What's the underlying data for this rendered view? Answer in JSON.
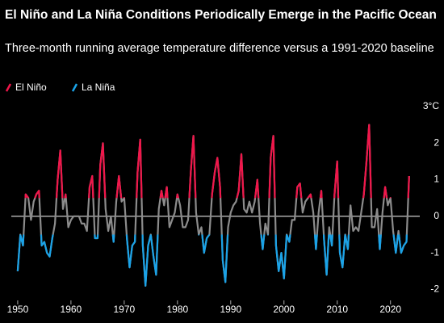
{
  "chart_data": {
    "type": "line",
    "title": "El Niño and La Niña Conditions Periodically Emerge in the Pacific Ocean",
    "subtitle": "Three-month running average temperature difference versus a 1991-2020 baseline",
    "color": "#8c8c8c",
    "series": [
      {
        "name": "El Niño",
        "color": "#f0164a",
        "min": 0.5
      },
      {
        "name": "La Niña",
        "color": "#1aa3e8",
        "max": -0.5
      }
    ],
    "x": [
      1950,
      1950.5,
      1951,
      1951.5,
      1952,
      1952.5,
      1953,
      1953.5,
      1954,
      1954.5,
      1955,
      1955.5,
      1956,
      1956.5,
      1957,
      1957.5,
      1958,
      1958.5,
      1959,
      1959.5,
      1960,
      1960.5,
      1961,
      1961.5,
      1962,
      1962.5,
      1963,
      1963.5,
      1964,
      1964.5,
      1965,
      1965.5,
      1966,
      1966.5,
      1967,
      1967.5,
      1968,
      1968.5,
      1969,
      1969.5,
      1970,
      1970.5,
      1971,
      1971.5,
      1972,
      1972.5,
      1973,
      1973.5,
      1974,
      1974.5,
      1975,
      1975.5,
      1976,
      1976.5,
      1977,
      1977.5,
      1978,
      1978.5,
      1979,
      1979.5,
      1980,
      1980.5,
      1981,
      1981.5,
      1982,
      1982.5,
      1983,
      1983.5,
      1984,
      1984.5,
      1985,
      1985.5,
      1986,
      1986.5,
      1987,
      1987.5,
      1988,
      1988.5,
      1989,
      1989.5,
      1990,
      1990.5,
      1991,
      1991.5,
      1992,
      1992.5,
      1993,
      1993.5,
      1994,
      1994.5,
      1995,
      1995.5,
      1996,
      1996.5,
      1997,
      1997.5,
      1998,
      1998.5,
      1999,
      1999.5,
      2000,
      2000.5,
      2001,
      2001.5,
      2002,
      2002.5,
      2003,
      2003.5,
      2004,
      2004.5,
      2005,
      2005.5,
      2006,
      2006.5,
      2007,
      2007.5,
      2008,
      2008.5,
      2009,
      2009.5,
      2010,
      2010.5,
      2011,
      2011.5,
      2012,
      2012.5,
      2013,
      2013.5,
      2014,
      2014.5,
      2015,
      2015.5,
      2016,
      2016.5,
      2017,
      2017.5,
      2018,
      2018.5,
      2019,
      2019.5,
      2020,
      2020.5,
      2021,
      2021.5,
      2022,
      2022.5,
      2023,
      2023.5
    ],
    "values": [
      -1.5,
      -0.5,
      -0.8,
      0.6,
      0.5,
      -0.1,
      0.4,
      0.6,
      0.7,
      -0.8,
      -0.7,
      -1.0,
      -1.1,
      -0.6,
      -0.2,
      1.0,
      1.8,
      0.2,
      0.6,
      -0.3,
      -0.1,
      0.0,
      0.0,
      0.0,
      -0.2,
      -0.2,
      -0.4,
      0.8,
      1.1,
      -0.6,
      -0.6,
      1.4,
      2.0,
      0.2,
      -0.4,
      0.0,
      -0.7,
      0.4,
      1.1,
      0.4,
      0.5,
      -0.6,
      -1.4,
      -0.8,
      -0.7,
      1.2,
      2.1,
      -0.8,
      -1.9,
      -0.8,
      -0.5,
      -1.1,
      -1.6,
      0.2,
      0.7,
      0.3,
      0.8,
      -0.3,
      -0.1,
      0.1,
      0.6,
      0.3,
      -0.3,
      -0.3,
      -0.1,
      1.2,
      2.2,
      0.1,
      -0.5,
      -0.3,
      -1.0,
      -0.6,
      -0.5,
      0.6,
      1.2,
      1.6,
      0.8,
      -1.2,
      -1.8,
      -0.3,
      0.1,
      0.3,
      0.4,
      0.7,
      1.7,
      0.2,
      0.1,
      0.4,
      0.1,
      0.4,
      1.0,
      -0.2,
      -0.9,
      -0.2,
      -0.5,
      1.6,
      2.2,
      -0.8,
      -1.5,
      -1.0,
      -1.7,
      -0.5,
      -0.7,
      -0.1,
      -0.1,
      0.8,
      0.9,
      0.1,
      0.4,
      0.5,
      0.6,
      0.1,
      -0.9,
      0.1,
      0.7,
      -0.6,
      -1.6,
      -0.3,
      -0.8,
      0.6,
      1.5,
      -1.0,
      -1.4,
      -0.5,
      -0.9,
      0.3,
      -0.4,
      -0.3,
      -0.4,
      0.1,
      0.6,
      1.5,
      2.5,
      -0.3,
      -0.3,
      0.2,
      -0.9,
      0.1,
      0.8,
      0.3,
      0.5,
      -0.4,
      -1.0,
      -0.4,
      -1.0,
      -0.8,
      -0.7,
      1.1
    ],
    "xlim": [
      1948.8,
      2025.5
    ],
    "xticks": [
      1950,
      1960,
      1970,
      1980,
      1990,
      2000,
      2010,
      2020
    ],
    "ylim": [
      -2.3,
      3
    ],
    "yticks": [
      -2,
      -1,
      0,
      1,
      2,
      {
        "value": 3,
        "label": "3°C"
      }
    ]
  }
}
